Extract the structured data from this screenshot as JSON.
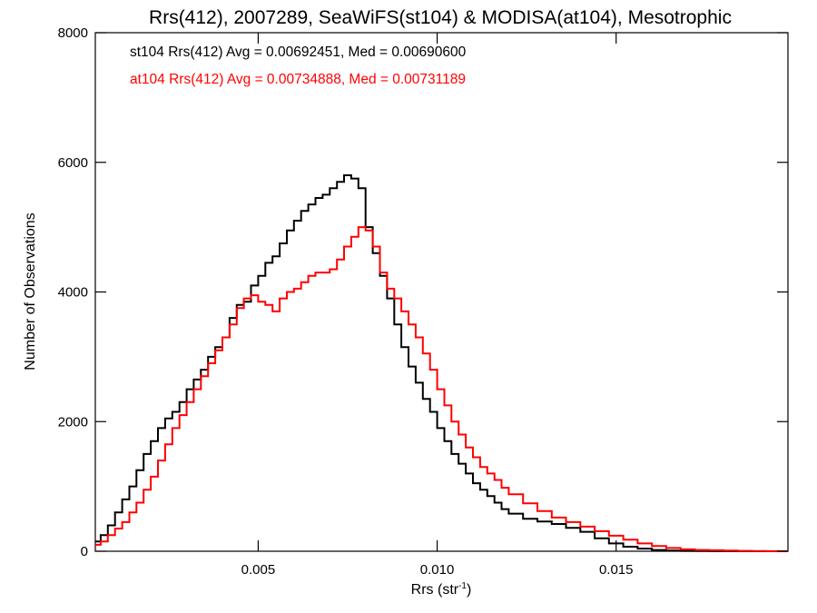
{
  "chart_data": {
    "type": "line",
    "step": true,
    "title": "Rrs(412), 2007289, SeaWiFS(st104) & MODISA(at104), Mesotrophic",
    "xlabel": {
      "base": "Rrs (str",
      "sup": "-1",
      "close": ")"
    },
    "ylabel": "Number of Observations",
    "xlim": [
      0.00045,
      0.0198
    ],
    "ylim": [
      0,
      8000
    ],
    "xticks": [
      0.005,
      0.01,
      0.015
    ],
    "xtick_labels": [
      "0.005",
      "0.010",
      "0.015"
    ],
    "yticks": [
      0,
      2000,
      4000,
      6000,
      8000
    ],
    "ytick_labels": [
      "0",
      "2000",
      "4000",
      "6000",
      "8000"
    ],
    "grid": false,
    "annotations": [
      {
        "text": "st104 Rrs(412) Avg = 0.00692451, Med = 0.00690600",
        "color": "#000000"
      },
      {
        "text": "at104 Rrs(412) Avg = 0.00734888, Med = 0.00731189",
        "color": "#ff0000"
      }
    ],
    "series": [
      {
        "color": "#000000",
        "x": [
          0.00045,
          0.0006,
          0.0008,
          0.001,
          0.0012,
          0.0014,
          0.0016,
          0.0018,
          0.002,
          0.0022,
          0.0024,
          0.0026,
          0.0028,
          0.003,
          0.0032,
          0.0034,
          0.0036,
          0.0038,
          0.004,
          0.0042,
          0.0044,
          0.0046,
          0.0048,
          0.005,
          0.0052,
          0.0054,
          0.0056,
          0.0058,
          0.006,
          0.0062,
          0.0064,
          0.0066,
          0.0068,
          0.007,
          0.0072,
          0.0074,
          0.0076,
          0.0078,
          0.008,
          0.0082,
          0.0084,
          0.0086,
          0.0088,
          0.009,
          0.0092,
          0.0094,
          0.0096,
          0.0098,
          0.01,
          0.0102,
          0.0104,
          0.0106,
          0.0108,
          0.011,
          0.0112,
          0.0114,
          0.0116,
          0.0118,
          0.012,
          0.0124,
          0.0128,
          0.0132,
          0.0136,
          0.014,
          0.0144,
          0.0148,
          0.0152,
          0.0156,
          0.016,
          0.0164,
          0.0168,
          0.0172,
          0.0176,
          0.018,
          0.0184,
          0.0188,
          0.0192,
          0.0196
        ],
        "y": [
          150,
          250,
          400,
          600,
          800,
          1000,
          1250,
          1500,
          1700,
          1900,
          2050,
          2150,
          2300,
          2500,
          2650,
          2800,
          3000,
          3150,
          3300,
          3600,
          3800,
          3850,
          4100,
          4250,
          4450,
          4550,
          4750,
          4950,
          5100,
          5250,
          5350,
          5450,
          5500,
          5600,
          5700,
          5800,
          5750,
          5600,
          5000,
          4600,
          4250,
          3900,
          3500,
          3150,
          2850,
          2600,
          2350,
          2150,
          1900,
          1700,
          1500,
          1350,
          1200,
          1050,
          950,
          850,
          750,
          650,
          580,
          500,
          460,
          420,
          360,
          300,
          200,
          120,
          70,
          40,
          20,
          10,
          5,
          3,
          2,
          1,
          1,
          0,
          0,
          0
        ]
      },
      {
        "color": "#ff0000",
        "x": [
          0.00045,
          0.0006,
          0.0008,
          0.001,
          0.0012,
          0.0014,
          0.0016,
          0.0018,
          0.002,
          0.0022,
          0.0024,
          0.0026,
          0.0028,
          0.003,
          0.0032,
          0.0034,
          0.0036,
          0.0038,
          0.004,
          0.0042,
          0.0044,
          0.0046,
          0.0048,
          0.005,
          0.0052,
          0.0054,
          0.0056,
          0.0058,
          0.006,
          0.0062,
          0.0064,
          0.0066,
          0.0068,
          0.007,
          0.0072,
          0.0074,
          0.0076,
          0.0078,
          0.008,
          0.0082,
          0.0084,
          0.0086,
          0.0088,
          0.009,
          0.0092,
          0.0094,
          0.0096,
          0.0098,
          0.01,
          0.0102,
          0.0104,
          0.0106,
          0.0108,
          0.011,
          0.0112,
          0.0114,
          0.0116,
          0.0118,
          0.012,
          0.0124,
          0.0128,
          0.0132,
          0.0136,
          0.014,
          0.0144,
          0.0148,
          0.0152,
          0.0156,
          0.016,
          0.0164,
          0.0168,
          0.0172,
          0.0176,
          0.018,
          0.0184,
          0.0188,
          0.0192,
          0.0196
        ],
        "y": [
          100,
          150,
          250,
          350,
          450,
          600,
          750,
          950,
          1150,
          1400,
          1650,
          1900,
          2100,
          2300,
          2500,
          2700,
          2900,
          3100,
          3300,
          3500,
          3750,
          3900,
          3950,
          3850,
          3800,
          3700,
          3900,
          4000,
          4050,
          4150,
          4250,
          4300,
          4300,
          4350,
          4500,
          4700,
          4850,
          5000,
          4950,
          4700,
          4300,
          4050,
          3900,
          3700,
          3500,
          3300,
          3050,
          2800,
          2500,
          2250,
          2000,
          1800,
          1600,
          1450,
          1300,
          1200,
          1100,
          980,
          880,
          740,
          620,
          520,
          450,
          380,
          310,
          240,
          180,
          120,
          80,
          50,
          30,
          20,
          15,
          10,
          5,
          3,
          2,
          1
        ]
      }
    ]
  }
}
